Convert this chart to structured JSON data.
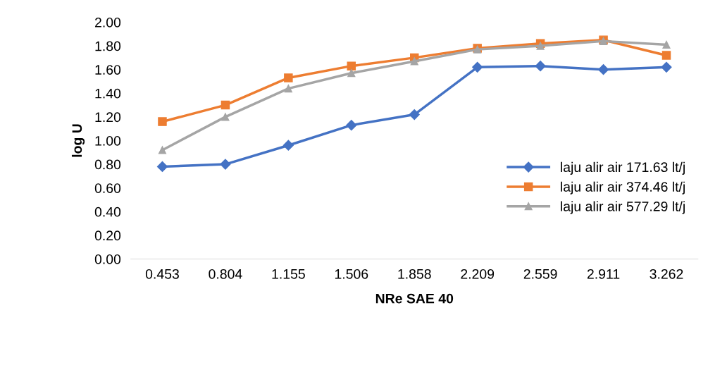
{
  "chart_data": {
    "type": "line",
    "xlabel": "NRe SAE 40",
    "ylabel": "log U",
    "categories": [
      "0.453",
      "0.804",
      "1.155",
      "1.506",
      "1.858",
      "2.209",
      "2.559",
      "2.911",
      "3.262"
    ],
    "series": [
      {
        "name": "laju alir air 171.63 lt/j",
        "color": "#4472c4",
        "marker": "diamond",
        "values": [
          0.78,
          0.8,
          0.96,
          1.13,
          1.22,
          1.62,
          1.63,
          1.6,
          1.62
        ]
      },
      {
        "name": "laju alir air 374.46 lt/j",
        "color": "#ed7d31",
        "marker": "square",
        "values": [
          1.16,
          1.3,
          1.53,
          1.63,
          1.7,
          1.78,
          1.82,
          1.85,
          1.72
        ]
      },
      {
        "name": "laju alir air 577.29 lt/j",
        "color": "#a5a5a5",
        "marker": "triangle",
        "values": [
          0.92,
          1.2,
          1.44,
          1.57,
          1.67,
          1.77,
          1.8,
          1.84,
          1.81
        ]
      }
    ],
    "ylim": [
      0,
      2
    ],
    "yticks": [
      {
        "value": 0,
        "label": "0.00"
      },
      {
        "value": 0.2,
        "label": "0.20"
      },
      {
        "value": 0.4,
        "label": "0.40"
      },
      {
        "value": 0.6,
        "label": "0.60"
      },
      {
        "value": 0.8,
        "label": "0.80"
      },
      {
        "value": 1.0,
        "label": "1.00"
      },
      {
        "value": 1.2,
        "label": "1.20"
      },
      {
        "value": 1.4,
        "label": "1.40"
      },
      {
        "value": 1.6,
        "label": "1.60"
      },
      {
        "value": 1.8,
        "label": "1.80"
      },
      {
        "value": 2.0,
        "label": "2.00"
      }
    ],
    "grid": false,
    "legend": "right",
    "line_style": "solid"
  }
}
